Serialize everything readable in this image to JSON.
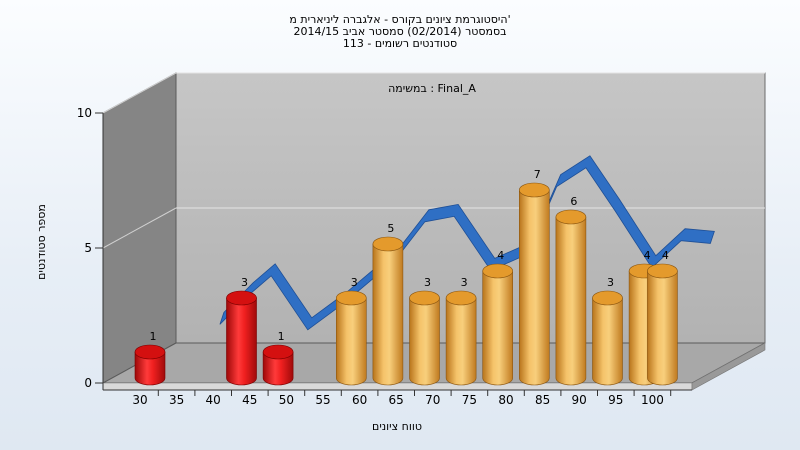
{
  "chart_data": {
    "type": "bar",
    "title_lines": [
      "היסטוגרמת ציונים בקורס - אלגברה ליניארית מ'",
      "בסמסטר  (02/2014)  סמסטר אביב 2014/15",
      "סטודנטים רשומים - 113"
    ],
    "subtitle": "במשימה : Final_A",
    "xlabel": "טווח ציונים",
    "ylabel": "מספר סטודנטים",
    "ylim": [
      0,
      10
    ],
    "y_ticks": [
      0,
      5,
      10
    ],
    "x_ticks": [
      "30",
      "35",
      "40",
      "45",
      "50",
      "55",
      "60",
      "65",
      "70",
      "75",
      "80",
      "85",
      "90",
      "95",
      "100"
    ],
    "bars": [
      {
        "x": 30,
        "value": 1,
        "label": "1",
        "fail": true
      },
      {
        "x": 42.5,
        "value": 3,
        "label": "3",
        "fail": true
      },
      {
        "x": 47.5,
        "value": 1,
        "label": "1",
        "fail": true
      },
      {
        "x": 57.5,
        "value": 3,
        "label": "3",
        "fail": false
      },
      {
        "x": 62.5,
        "value": 5,
        "label": "5",
        "fail": false
      },
      {
        "x": 67.5,
        "value": 3,
        "label": "3",
        "fail": false
      },
      {
        "x": 72.5,
        "value": 3,
        "label": "3",
        "fail": false
      },
      {
        "x": 77.5,
        "value": 4,
        "label": "4",
        "fail": false
      },
      {
        "x": 82.5,
        "value": 7,
        "label": "7",
        "fail": false
      },
      {
        "x": 87.5,
        "value": 6,
        "label": "6",
        "fail": false
      },
      {
        "x": 92.5,
        "value": 3,
        "label": "3",
        "fail": false
      },
      {
        "x": 97.5,
        "value": 4,
        "label": "4",
        "fail": false
      },
      {
        "x": 100,
        "value": 4,
        "label": "4",
        "fail": false
      }
    ],
    "trend_line": [
      {
        "x": 36,
        "y": 1.8
      },
      {
        "x": 40,
        "y": 2.9
      },
      {
        "x": 43,
        "y": 3.6
      },
      {
        "x": 48,
        "y": 1.6
      },
      {
        "x": 53,
        "y": 2.6
      },
      {
        "x": 60,
        "y": 4.2
      },
      {
        "x": 64,
        "y": 5.6
      },
      {
        "x": 68,
        "y": 5.8
      },
      {
        "x": 73,
        "y": 3.8
      },
      {
        "x": 78,
        "y": 4.4
      },
      {
        "x": 82,
        "y": 6.9
      },
      {
        "x": 86,
        "y": 7.6
      },
      {
        "x": 90,
        "y": 6.0
      },
      {
        "x": 95,
        "y": 3.9
      },
      {
        "x": 99,
        "y": 4.9
      },
      {
        "x": 103,
        "y": 4.8
      }
    ],
    "colors": {
      "fail_bar": "#e01818",
      "pass_bar": "#f0a83a",
      "trend": "#2f6fc4",
      "wall": "#b8b8b8",
      "side_wall": "#8a8a8a",
      "floor": "#a9a9a9"
    },
    "grid": true
  }
}
